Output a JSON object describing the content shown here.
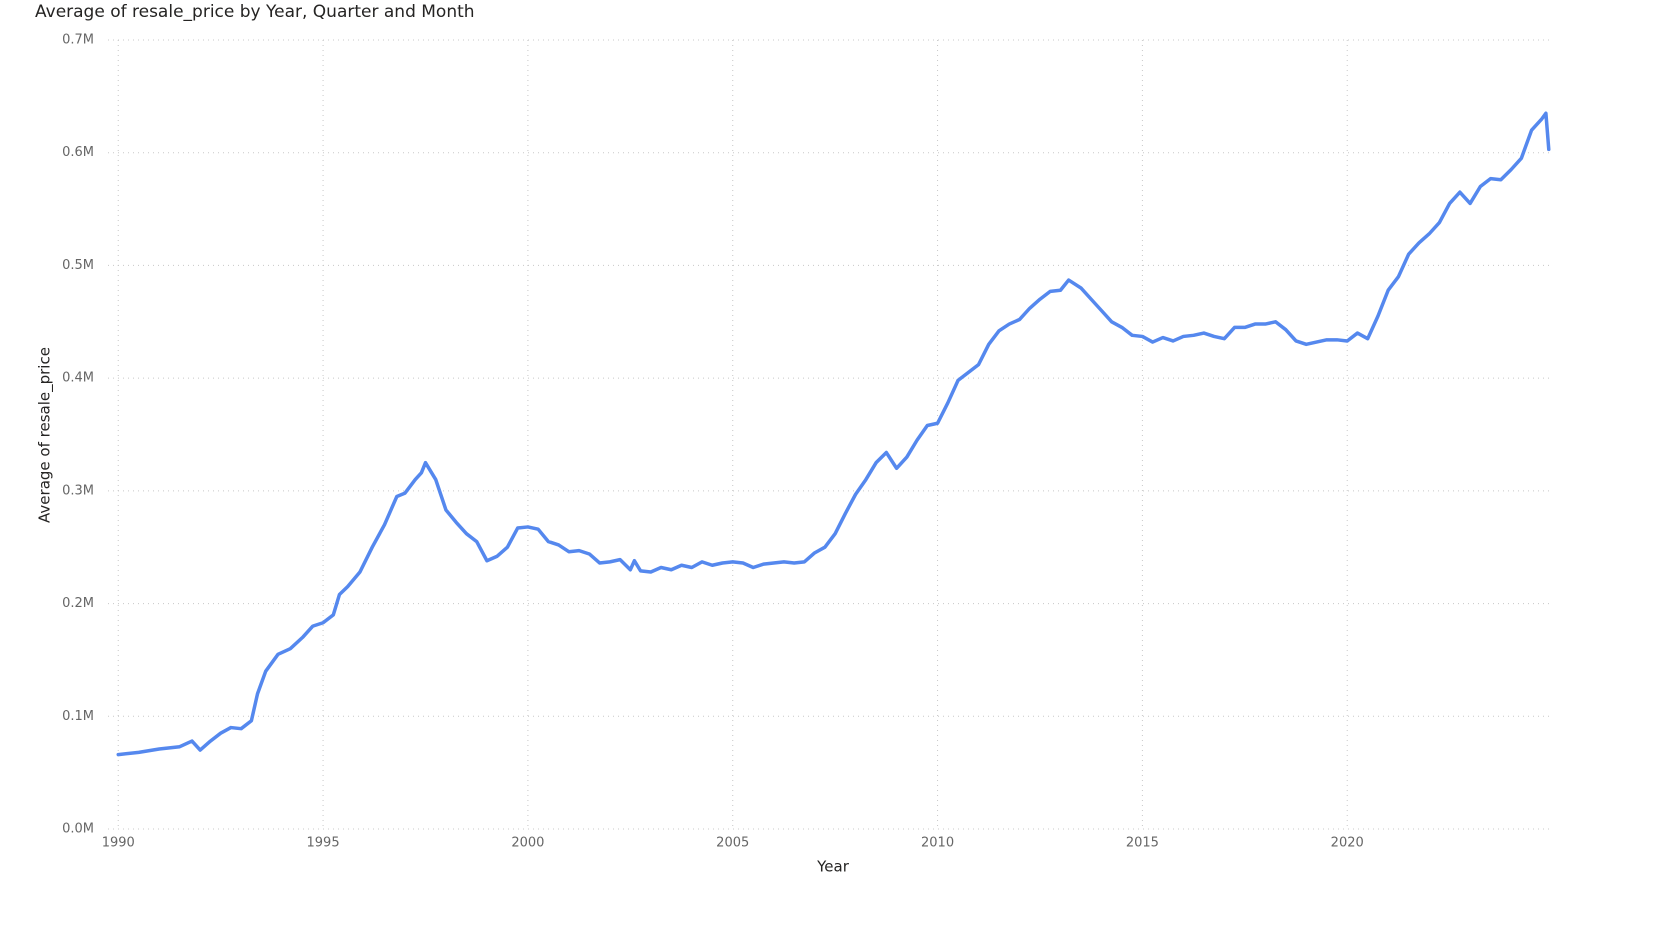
{
  "chart_data": {
    "type": "line",
    "title": "Average of resale_price by Year, Quarter and Month",
    "x_label": "Year",
    "y_label": "Average of resale_price",
    "color": "#5588EE",
    "grid": true,
    "xlim": [
      1989.75,
      2024.95
    ],
    "xticks": [
      1990,
      1995,
      2000,
      2005,
      2010,
      2015,
      2020
    ],
    "ylim": [
      0,
      700000
    ],
    "yticks": [
      {
        "value": 0,
        "label": "0.0M"
      },
      {
        "value": 100000,
        "label": "0.1M"
      },
      {
        "value": 200000,
        "label": "0.2M"
      },
      {
        "value": 300000,
        "label": "0.3M"
      },
      {
        "value": 400000,
        "label": "0.4M"
      },
      {
        "value": 500000,
        "label": "0.5M"
      },
      {
        "value": 600000,
        "label": "0.6M"
      },
      {
        "value": 700000,
        "label": "0.7M"
      }
    ],
    "x": [
      1990,
      1990.5,
      1991,
      1991.5,
      1991.8,
      1992,
      1992.25,
      1992.5,
      1992.75,
      1993,
      1993.25,
      1993.4,
      1993.6,
      1993.9,
      1994.2,
      1994.5,
      1994.75,
      1995,
      1995.25,
      1995.4,
      1995.6,
      1995.9,
      1996.2,
      1996.5,
      1996.8,
      1997,
      1997.25,
      1997.4,
      1997.5,
      1997.75,
      1998,
      1998.25,
      1998.5,
      1998.75,
      1999,
      1999.25,
      1999.5,
      1999.75,
      2000,
      2000.25,
      2000.5,
      2000.75,
      2001,
      2001.25,
      2001.5,
      2001.75,
      2002,
      2002.25,
      2002.5,
      2002.6,
      2002.75,
      2003,
      2003.25,
      2003.5,
      2003.75,
      2004,
      2004.25,
      2004.5,
      2004.75,
      2005,
      2005.25,
      2005.5,
      2005.75,
      2006,
      2006.25,
      2006.5,
      2006.75,
      2007,
      2007.25,
      2007.5,
      2007.75,
      2008,
      2008.25,
      2008.5,
      2008.75,
      2009,
      2009.25,
      2009.5,
      2009.75,
      2010,
      2010.25,
      2010.5,
      2010.75,
      2011,
      2011.25,
      2011.5,
      2011.75,
      2012,
      2012.25,
      2012.5,
      2012.75,
      2013,
      2013.2,
      2013.5,
      2013.75,
      2014,
      2014.25,
      2014.5,
      2014.75,
      2015,
      2015.25,
      2015.5,
      2015.75,
      2016,
      2016.25,
      2016.5,
      2016.75,
      2017,
      2017.25,
      2017.5,
      2017.75,
      2018,
      2018.25,
      2018.5,
      2018.75,
      2019,
      2019.25,
      2019.5,
      2019.75,
      2020,
      2020.25,
      2020.5,
      2020.75,
      2021,
      2021.25,
      2021.5,
      2021.75,
      2022,
      2022.25,
      2022.5,
      2022.75,
      2023,
      2023.25,
      2023.5,
      2023.75,
      2024,
      2024.25,
      2024.5,
      2024.75,
      2024.85,
      2024.92
    ],
    "values": [
      66000,
      68000,
      71000,
      73000,
      78000,
      70000,
      78000,
      85000,
      90000,
      89000,
      96000,
      120000,
      140000,
      155000,
      160000,
      170000,
      180000,
      183000,
      190000,
      208000,
      215000,
      228000,
      250000,
      270000,
      295000,
      298000,
      310000,
      316000,
      325000,
      310000,
      283000,
      272000,
      262000,
      255000,
      238000,
      242000,
      250000,
      267000,
      268000,
      266000,
      255000,
      252000,
      246000,
      247000,
      244000,
      236000,
      237000,
      239000,
      230000,
      238000,
      229000,
      228000,
      232000,
      230000,
      234000,
      232000,
      237000,
      234000,
      236000,
      237000,
      236000,
      232000,
      235000,
      236000,
      237000,
      236000,
      237000,
      245000,
      250000,
      262000,
      280000,
      297000,
      310000,
      325000,
      334000,
      320000,
      330000,
      345000,
      358000,
      360000,
      378000,
      398000,
      405000,
      412000,
      430000,
      442000,
      448000,
      452000,
      462000,
      470000,
      477000,
      478000,
      487000,
      480000,
      470000,
      460000,
      450000,
      445000,
      438000,
      437000,
      432000,
      436000,
      433000,
      437000,
      438000,
      440000,
      437000,
      435000,
      445000,
      445000,
      448000,
      448000,
      450000,
      443000,
      433000,
      430000,
      432000,
      434000,
      434000,
      433000,
      440000,
      435000,
      455000,
      478000,
      490000,
      510000,
      520000,
      528000,
      538000,
      555000,
      565000,
      555000,
      570000,
      577000,
      576000,
      585000,
      595000,
      620000,
      630000,
      635000,
      603000
    ]
  }
}
